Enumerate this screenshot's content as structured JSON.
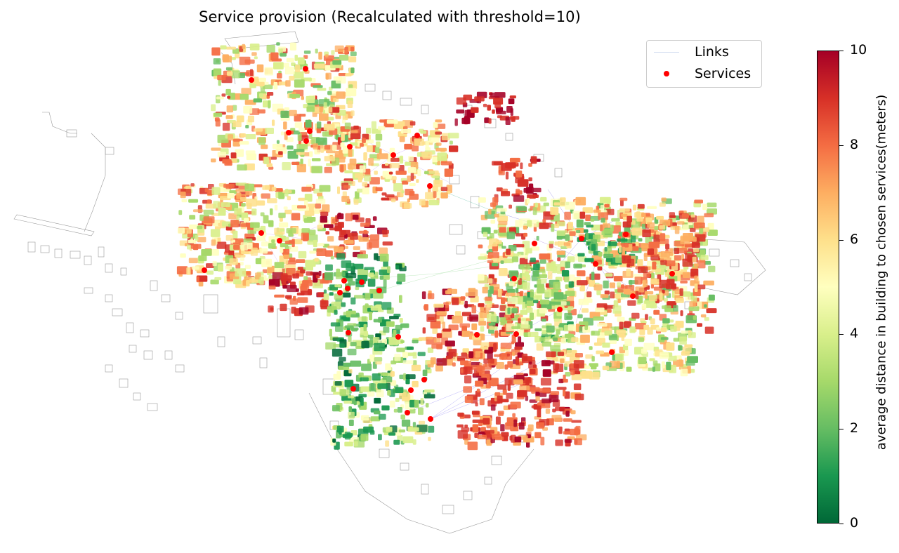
{
  "title": "Service provision (Recalculated with threshold=10)",
  "legend": {
    "links_label": "Links",
    "services_label": "Services",
    "services_color": "#ff0000",
    "links_color": "#b7c6e6"
  },
  "colorbar": {
    "label": "average distance in building to chosen services(meters)",
    "min": 0,
    "max": 10,
    "ticks": [
      "0",
      "2",
      "4",
      "6",
      "8",
      "10"
    ],
    "colormap": "RdYlGn_r",
    "gradient": [
      "#006837",
      "#1a9850",
      "#66bd63",
      "#a6d96a",
      "#d9ef8b",
      "#ffffbf",
      "#fee08b",
      "#fdae61",
      "#f46d43",
      "#d73027",
      "#a50026"
    ]
  }
}
